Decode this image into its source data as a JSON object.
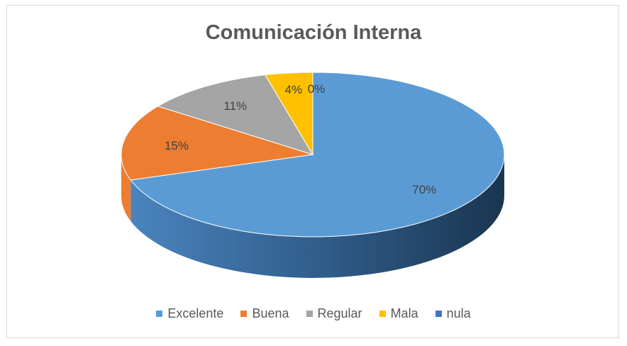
{
  "chart_data": {
    "type": "pie",
    "title": "Comunicación Interna",
    "slices": [
      {
        "name": "Excelente",
        "value": 70,
        "label": "70%",
        "color": "#5b9bd5"
      },
      {
        "name": "Buena",
        "value": 15,
        "label": "15%",
        "color": "#ed7d31"
      },
      {
        "name": "Regular",
        "value": 11,
        "label": "11%",
        "color": "#a5a5a5"
      },
      {
        "name": "Mala",
        "value": 4,
        "label": "4%",
        "color": "#ffc000"
      },
      {
        "name": "nula",
        "value": 0,
        "label": "0%",
        "color": "#4472c4"
      }
    ],
    "legend_position": "bottom",
    "style": "3d"
  }
}
